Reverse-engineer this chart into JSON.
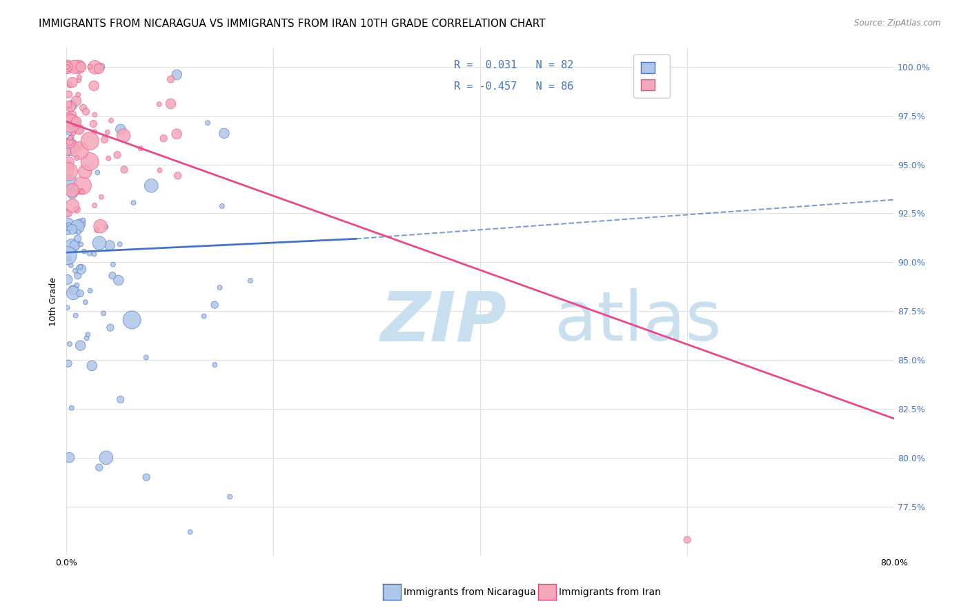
{
  "title": "IMMIGRANTS FROM NICARAGUA VS IMMIGRANTS FROM IRAN 10TH GRADE CORRELATION CHART",
  "source": "Source: ZipAtlas.com",
  "ylabel": "10th Grade",
  "ytick_labels": [
    "77.5%",
    "80.0%",
    "82.5%",
    "85.0%",
    "87.5%",
    "90.0%",
    "92.5%",
    "95.0%",
    "97.5%",
    "100.0%"
  ],
  "ytick_values": [
    0.775,
    0.8,
    0.825,
    0.85,
    0.875,
    0.9,
    0.925,
    0.95,
    0.975,
    1.0
  ],
  "xmin": 0.0,
  "xmax": 0.8,
  "ymin": 0.75,
  "ymax": 1.01,
  "r_nicaragua": 0.031,
  "n_nicaragua": 82,
  "r_iran": -0.457,
  "n_iran": 86,
  "color_nicaragua": "#aec6e8",
  "color_iran": "#f4a7b9",
  "line_color_nicaragua": "#4472c4",
  "line_color_iran": "#e8488a",
  "watermark_zip": "ZIP",
  "watermark_atlas": "atlas",
  "watermark_color_zip": "#c8dff0",
  "watermark_color_atlas": "#c8dff0",
  "grid_color": "#e0e0e0",
  "background_color": "#ffffff",
  "right_tick_color": "#4472c4",
  "title_fontsize": 11,
  "axis_label_fontsize": 9,
  "tick_fontsize": 9
}
